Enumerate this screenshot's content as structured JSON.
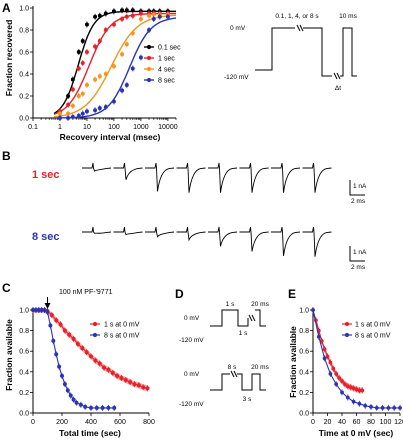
{
  "panels": {
    "A": "A",
    "B": "B",
    "C": "C",
    "D": "D",
    "E": "E"
  },
  "colors": {
    "black": "#000000",
    "red": "#e8202a",
    "orange": "#f7941d",
    "blue": "#2a35b5",
    "red_band": "#f4a6a6",
    "blue_band": "#a9acdf"
  },
  "chart_data": [
    {
      "id": "A",
      "type": "line",
      "xscale": "log",
      "xlim": [
        0.1,
        20000
      ],
      "ylim": [
        0.0,
        1.0
      ],
      "xticks": [
        "0.1",
        "1",
        "10",
        "100",
        "1000",
        "10000"
      ],
      "yticks": [
        "0.0",
        "0.2",
        "0.4",
        "0.6",
        "0.8",
        "1.0"
      ],
      "xlabel": "Recovery interval (msec)",
      "ylabel": "Fraction recovered",
      "legend_position": "right",
      "series": [
        {
          "name": "0.1 sec",
          "color": "#000000",
          "x": [
            1,
            2,
            3,
            5,
            7,
            10,
            20,
            30,
            50,
            100,
            200,
            300,
            500,
            1000,
            2000,
            3000,
            5000,
            10000
          ],
          "y": [
            0.06,
            0.2,
            0.35,
            0.6,
            0.7,
            0.85,
            0.92,
            0.93,
            0.95,
            0.97,
            0.98,
            0.98,
            0.98,
            0.97,
            0.97,
            0.97,
            0.97,
            0.97
          ],
          "fit": {
            "T": 4.8,
            "n": 1.5,
            "top": 0.97
          }
        },
        {
          "name": "1 sec",
          "color": "#e8202a",
          "x": [
            1,
            2,
            3,
            5,
            7,
            10,
            20,
            30,
            50,
            100,
            200,
            300,
            500,
            1000,
            2000,
            3000,
            5000,
            10000
          ],
          "y": [
            0.06,
            0.12,
            0.26,
            0.45,
            0.5,
            0.6,
            0.65,
            0.7,
            0.8,
            0.85,
            0.9,
            0.92,
            0.93,
            0.95,
            0.95,
            0.95,
            0.95,
            0.95
          ],
          "fit": {
            "T": 12,
            "n": 1.1,
            "top": 0.95
          }
        },
        {
          "name": "4 sec",
          "color": "#f7941d",
          "x": [
            1,
            2,
            3,
            5,
            7,
            10,
            20,
            30,
            50,
            100,
            200,
            300,
            500,
            1000,
            2000,
            3000,
            5000,
            10000
          ],
          "y": [
            0.04,
            0.04,
            0.11,
            0.2,
            0.22,
            0.3,
            0.35,
            0.38,
            0.4,
            0.47,
            0.58,
            0.67,
            0.77,
            0.9,
            0.93,
            0.94,
            0.94,
            0.94
          ],
          "fit": {
            "T": 80,
            "n": 0.9,
            "top": 0.94
          }
        },
        {
          "name": "8 sec",
          "color": "#2a35b5",
          "x": [
            1,
            2,
            3,
            5,
            7,
            10,
            20,
            30,
            50,
            100,
            200,
            300,
            500,
            1000,
            2000,
            3000,
            5000,
            10000
          ],
          "y": [
            0.0,
            0.0,
            0.01,
            0.02,
            0.04,
            0.06,
            0.07,
            0.09,
            0.1,
            0.15,
            0.25,
            0.3,
            0.45,
            0.55,
            0.8,
            0.9,
            0.92,
            0.92
          ],
          "fit": {
            "T": 380,
            "n": 1.1,
            "top": 0.92
          }
        }
      ]
    },
    {
      "id": "C",
      "type": "scatter",
      "xlim": [
        0,
        800
      ],
      "ylim": [
        0.0,
        1.0
      ],
      "xticks": [
        "0",
        "200",
        "400",
        "600",
        "800"
      ],
      "yticks": [
        "0.0",
        "0.2",
        "0.4",
        "0.6",
        "0.8",
        "1.0"
      ],
      "xlabel": "Total time (sec)",
      "ylabel": "Fraction available",
      "annotation": "100 nM PF-'9771",
      "annotation_x": 100,
      "legend_position": "top-right",
      "series": [
        {
          "name": "1 s at 0 mV",
          "color": "#e8202a",
          "band": true,
          "x": [
            0,
            20,
            40,
            60,
            80,
            100,
            130,
            160,
            190,
            220,
            250,
            280,
            310,
            340,
            370,
            400,
            430,
            460,
            490,
            520,
            550,
            580,
            610,
            640,
            670,
            700,
            730,
            760,
            790
          ],
          "y": [
            1.0,
            1.0,
            1.0,
            1.0,
            1.0,
            0.99,
            0.95,
            0.9,
            0.86,
            0.8,
            0.76,
            0.72,
            0.67,
            0.63,
            0.59,
            0.55,
            0.51,
            0.48,
            0.44,
            0.42,
            0.39,
            0.36,
            0.34,
            0.32,
            0.3,
            0.28,
            0.27,
            0.25,
            0.24
          ]
        },
        {
          "name": "8 s at 0 mV",
          "color": "#2a35b5",
          "band": false,
          "x": [
            0,
            20,
            40,
            60,
            80,
            100,
            120,
            140,
            160,
            180,
            200,
            220,
            240,
            260,
            280,
            300,
            330,
            360,
            400,
            440,
            480,
            520,
            560
          ],
          "y": [
            1.0,
            1.0,
            1.0,
            1.0,
            1.0,
            0.98,
            0.85,
            0.7,
            0.57,
            0.45,
            0.36,
            0.28,
            0.22,
            0.17,
            0.13,
            0.1,
            0.08,
            0.06,
            0.05,
            0.05,
            0.05,
            0.05,
            0.05
          ]
        }
      ]
    },
    {
      "id": "E",
      "type": "scatter",
      "xlim": [
        0,
        120
      ],
      "ylim": [
        0.0,
        1.0
      ],
      "xticks": [
        "0",
        "20",
        "40",
        "60",
        "80",
        "100",
        "120"
      ],
      "yticks": [
        "0.0",
        "0.2",
        "0.4",
        "0.6",
        "0.8",
        "1.0"
      ],
      "xlabel": "Time at 0 mV (sec)",
      "ylabel": "Fraction available",
      "legend_position": "top-right",
      "series": [
        {
          "name": "1 s at 0 mV",
          "color": "#e8202a",
          "band": true,
          "x": [
            0,
            4,
            8,
            12,
            16,
            20,
            24,
            28,
            32,
            36,
            40,
            44,
            48,
            52,
            56,
            60,
            64,
            68
          ],
          "y": [
            1.0,
            0.9,
            0.8,
            0.7,
            0.62,
            0.55,
            0.49,
            0.43,
            0.38,
            0.34,
            0.31,
            0.28,
            0.26,
            0.25,
            0.24,
            0.23,
            0.22,
            0.22
          ]
        },
        {
          "name": "8 s at 0 mV",
          "color": "#2a35b5",
          "band": false,
          "x": [
            0,
            8,
            16,
            24,
            32,
            40,
            48,
            56,
            64,
            72,
            80,
            88,
            96,
            104,
            112,
            120
          ],
          "y": [
            1.0,
            0.74,
            0.53,
            0.38,
            0.28,
            0.2,
            0.15,
            0.11,
            0.09,
            0.07,
            0.06,
            0.05,
            0.05,
            0.05,
            0.05,
            0.05
          ]
        }
      ]
    }
  ],
  "protocolA": {
    "v0": "0 mV",
    "vhold": "-120 mV",
    "durations": "0.1, 1, 4, or 8 s",
    "test": "10 ms",
    "interval": "Δt"
  },
  "panelB": {
    "row1_label": "1 sec",
    "row2_label": "8 sec",
    "scale_current": "1 nA",
    "scale_time": "2 ms",
    "row1_amplitudes": [
      0.12,
      0.45,
      0.9,
      0.95,
      0.95,
      0.95,
      0.95,
      0.95
    ],
    "row2_amplitudes": [
      0.05,
      0.1,
      0.18,
      0.3,
      0.55,
      0.75,
      0.92,
      0.95
    ]
  },
  "protocolD": {
    "top": {
      "v0": "0 mV",
      "vhold": "-120 mV",
      "pulse": "1 s",
      "test": "20 ms",
      "gap": "1 s"
    },
    "bottom": {
      "v0": "0 mV",
      "vhold": "-120 mV",
      "pulse": "8 s",
      "test": "20 ms",
      "gap": "3 s"
    }
  }
}
